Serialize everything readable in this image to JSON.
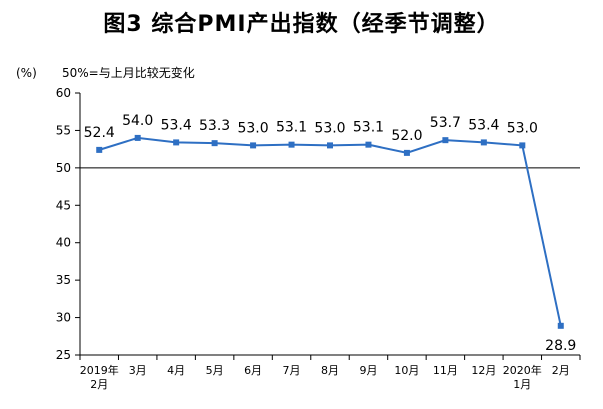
{
  "chart_data": {
    "type": "line",
    "title": "图3 综合PMI产出指数（经季节调整）",
    "ylabel": "(%)",
    "reference_note": "50%=与上月比较无变化",
    "ylim": [
      25,
      60
    ],
    "yticks": [
      25,
      30,
      35,
      40,
      45,
      50,
      55,
      60
    ],
    "reference_line": 50,
    "categories": [
      [
        "2019年",
        "2月"
      ],
      [
        "3月"
      ],
      [
        "4月"
      ],
      [
        "5月"
      ],
      [
        "6月"
      ],
      [
        "7月"
      ],
      [
        "8月"
      ],
      [
        "9月"
      ],
      [
        "10月"
      ],
      [
        "11月"
      ],
      [
        "12月"
      ],
      [
        "2020年",
        "1月"
      ],
      [
        "2月"
      ]
    ],
    "values": [
      52.4,
      54.0,
      53.4,
      53.3,
      53.0,
      53.1,
      53.0,
      53.1,
      52.0,
      53.7,
      53.4,
      53.0,
      28.9
    ],
    "value_labels": [
      "52.4",
      "54.0",
      "53.4",
      "53.3",
      "53.0",
      "53.1",
      "53.0",
      "53.1",
      "52.0",
      "53.7",
      "53.4",
      "53.0",
      "28.9"
    ],
    "series_color": "#2e6fc3",
    "grid": false,
    "legend": "none"
  }
}
